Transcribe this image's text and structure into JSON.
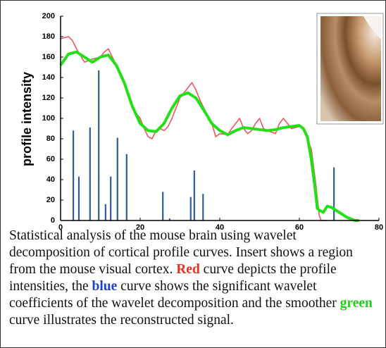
{
  "chart_data": {
    "type": "line",
    "ylabel": "profile intensity",
    "xlim": [
      0,
      80
    ],
    "xticks": [
      0,
      20,
      40,
      60,
      80
    ],
    "ylim": [
      0,
      200
    ],
    "yticks": [
      0,
      20,
      40,
      60,
      80,
      100,
      120,
      140,
      160,
      180,
      200
    ],
    "series": [
      {
        "color": "#2e5c9e",
        "style": "stem",
        "x": [
          3.2,
          4.6,
          7.4,
          9.6,
          11.3,
          12.6,
          14.3,
          16.6,
          25.7,
          27.4,
          32.7,
          33.6,
          35.8,
          68.7
        ],
        "values": [
          88,
          43,
          91,
          147,
          16,
          43,
          81,
          65,
          28,
          2,
          23,
          49,
          26,
          52
        ]
      },
      {
        "color": "#f0555a",
        "style": "line",
        "x": [
          0,
          2,
          3,
          4,
          6,
          8,
          10,
          11,
          12,
          13,
          14,
          16,
          18,
          20,
          21,
          22,
          23,
          24,
          25,
          26,
          27,
          28,
          30,
          31,
          32,
          33,
          34,
          35,
          36,
          38,
          39,
          40,
          42,
          43,
          44,
          45,
          46,
          47,
          48,
          49,
          50,
          51,
          52,
          54,
          55,
          56,
          57,
          58,
          60,
          61,
          62,
          63,
          64,
          65,
          65.5,
          67
        ],
        "values": [
          178,
          180,
          176,
          168,
          155,
          158,
          160,
          165,
          168,
          160,
          152,
          135,
          110,
          100,
          90,
          82,
          80,
          88,
          90,
          88,
          92,
          100,
          120,
          125,
          130,
          135,
          128,
          118,
          110,
          95,
          82,
          85,
          84,
          90,
          95,
          100,
          90,
          85,
          88,
          95,
          100,
          90,
          88,
          85,
          95,
          100,
          95,
          90,
          92,
          90,
          80,
          70,
          40,
          5,
          0,
          0
        ]
      },
      {
        "color": "#22e016",
        "style": "line",
        "x": [
          0,
          2,
          4,
          6,
          8,
          10,
          12,
          14,
          16,
          18,
          20,
          22,
          24,
          26,
          28,
          30,
          32,
          34,
          36,
          38,
          40,
          42,
          44,
          46,
          48,
          50,
          52,
          54,
          56,
          58,
          60,
          61,
          62,
          63,
          64,
          64.5,
          65,
          66,
          67,
          68,
          70,
          72,
          74,
          75
        ],
        "values": [
          152,
          163,
          165,
          160,
          155,
          160,
          162,
          152,
          135,
          112,
          95,
          88,
          87,
          95,
          110,
          122,
          125,
          120,
          108,
          95,
          88,
          84,
          88,
          91,
          90,
          89,
          88,
          89,
          91,
          92,
          93,
          90,
          82,
          60,
          30,
          12,
          10,
          8,
          14,
          13,
          8,
          3,
          0,
          0
        ]
      }
    ],
    "caption": [
      {
        "text": "Statistical analysis of the mouse brain using wavelet decomposition of cortical profile curves. Insert shows a region from the mouse visual cortex. "
      },
      {
        "text": "Red",
        "color": "#e8331f"
      },
      {
        "text": " curve depicts the profile intensities, the "
      },
      {
        "text": "blue",
        "color": "#1f3fd0"
      },
      {
        "text": " curve shows the significant wavelet coefficients of the wavelet decomposition and the smoother "
      },
      {
        "text": "green",
        "color": "#22d016"
      },
      {
        "text": " curve illustrates the reconstructed signal."
      }
    ]
  }
}
